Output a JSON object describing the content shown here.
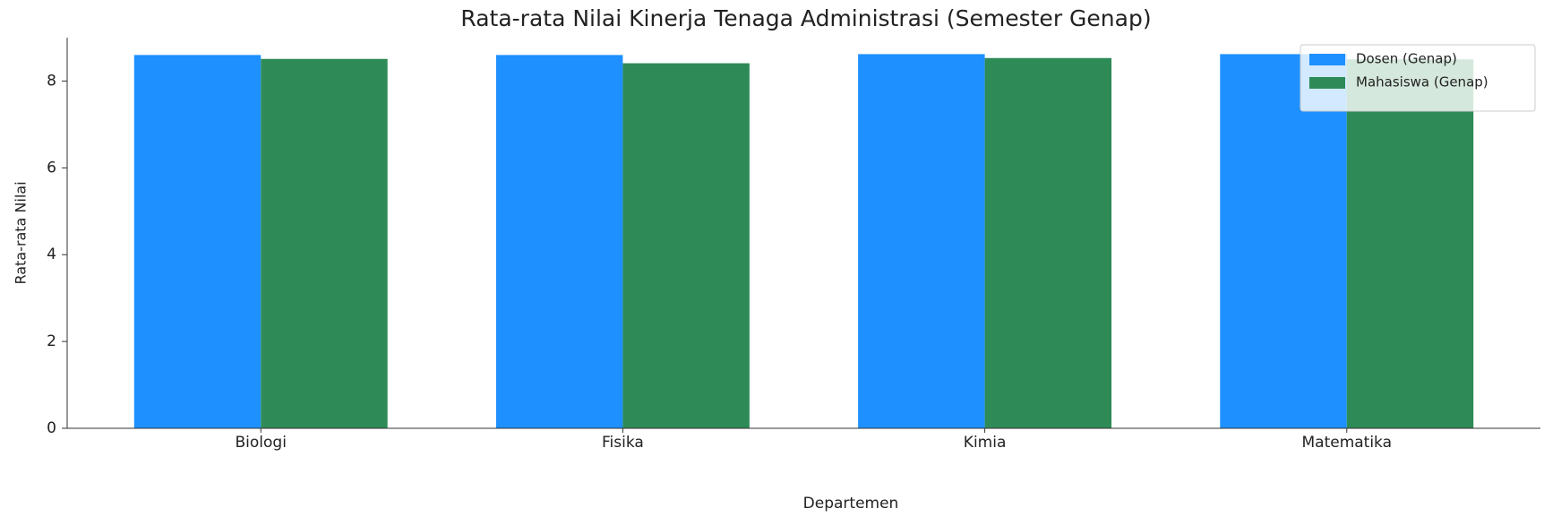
{
  "chart_data": {
    "type": "bar",
    "title": "Rata-rata Nilai Kinerja Tenaga Administrasi (Semester Genap)",
    "x_label": "Departemen",
    "y_label": "Rata-rata Nilai",
    "categories": [
      "Biologi",
      "Fisika",
      "Kimia",
      "Matematika"
    ],
    "series": [
      {
        "name": "Dosen (Genap)",
        "color": "#1e90ff",
        "values": [
          8.6,
          8.6,
          8.62,
          8.62
        ]
      },
      {
        "name": "Mahasiswa (Genap)",
        "color": "#2e8b57",
        "values": [
          8.51,
          8.41,
          8.53,
          8.5
        ]
      }
    ],
    "ylim": [
      0,
      9
    ],
    "yticks": [
      0,
      2,
      4,
      6,
      8
    ],
    "legend": "upper right",
    "grid": false
  }
}
